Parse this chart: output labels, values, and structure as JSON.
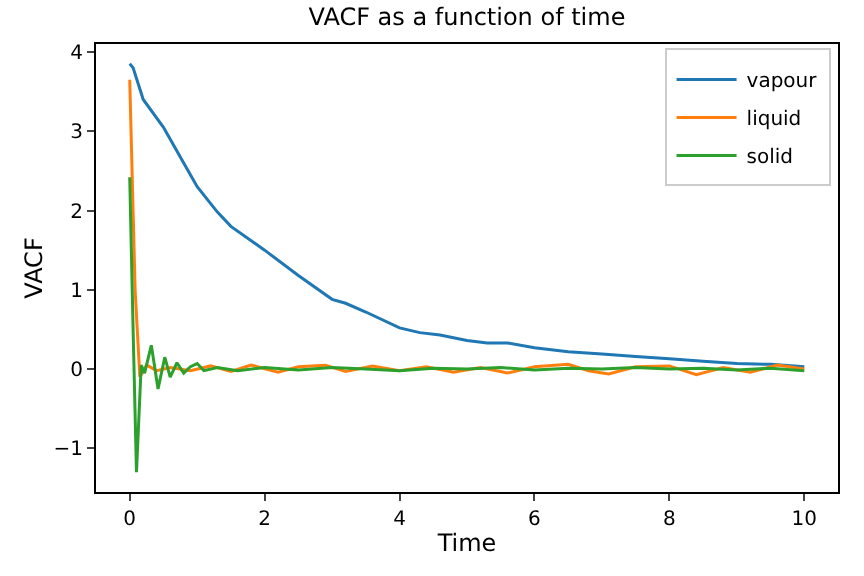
{
  "chart_data": {
    "type": "line",
    "title": "VACF as a function of time",
    "xlabel": "Time",
    "ylabel": "VACF",
    "xlim": [
      -0.5,
      10.5
    ],
    "ylim": [
      -1.55,
      4.1
    ],
    "xticks": [
      0,
      2,
      4,
      6,
      8,
      10
    ],
    "yticks": [
      -1,
      0,
      1,
      2,
      3,
      4
    ],
    "grid": false,
    "legend": "top right",
    "series": [
      {
        "name": "vapour",
        "color": "#1f77b4",
        "x": [
          0,
          0.05,
          0.2,
          0.5,
          0.8,
          1,
          1.3,
          1.5,
          2,
          2.5,
          3,
          3.2,
          3.5,
          4,
          4.3,
          4.6,
          5,
          5.3,
          5.6,
          6,
          6.5,
          7,
          7.5,
          8,
          8.5,
          9,
          9.5,
          10
        ],
        "values": [
          3.85,
          3.8,
          3.4,
          3.05,
          2.6,
          2.3,
          1.98,
          1.8,
          1.5,
          1.18,
          0.88,
          0.83,
          0.72,
          0.52,
          0.46,
          0.43,
          0.36,
          0.33,
          0.33,
          0.27,
          0.22,
          0.19,
          0.16,
          0.13,
          0.1,
          0.07,
          0.06,
          0.03
        ]
      },
      {
        "name": "liquid",
        "color": "#ff7f0e",
        "x": [
          0,
          0.08,
          0.15,
          0.25,
          0.4,
          0.6,
          0.9,
          1.2,
          1.5,
          1.8,
          2.2,
          2.5,
          2.9,
          3.2,
          3.6,
          4,
          4.4,
          4.8,
          5.2,
          5.6,
          6,
          6.5,
          6.8,
          7.1,
          7.5,
          8,
          8.4,
          8.8,
          9.2,
          9.6,
          10
        ],
        "values": [
          3.65,
          1.0,
          -0.1,
          0.05,
          -0.02,
          0.02,
          -0.02,
          0.04,
          -0.03,
          0.05,
          -0.04,
          0.03,
          0.05,
          -0.03,
          0.04,
          -0.02,
          0.03,
          -0.04,
          0.02,
          -0.05,
          0.03,
          0.06,
          -0.02,
          -0.06,
          0.03,
          0.04,
          -0.07,
          0.02,
          -0.04,
          0.05,
          0
        ]
      },
      {
        "name": "solid",
        "color": "#2ca02c",
        "x": [
          0,
          0.05,
          0.1,
          0.17,
          0.22,
          0.32,
          0.42,
          0.52,
          0.6,
          0.7,
          0.8,
          0.9,
          1,
          1.1,
          1.3,
          1.6,
          2,
          2.5,
          3,
          3.5,
          4,
          4.5,
          5,
          5.5,
          6,
          6.5,
          7,
          7.5,
          8,
          8.5,
          9,
          9.5,
          10
        ],
        "values": [
          2.42,
          0.5,
          -1.3,
          0.05,
          -0.05,
          0.3,
          -0.25,
          0.15,
          -0.1,
          0.08,
          -0.05,
          0.03,
          0.07,
          -0.02,
          0.02,
          -0.02,
          0.02,
          -0.01,
          0.02,
          0,
          -0.02,
          0.01,
          0,
          0.02,
          -0.01,
          0.01,
          0,
          0.02,
          0,
          0.01,
          -0.01,
          0.01,
          -0.02
        ]
      }
    ]
  }
}
